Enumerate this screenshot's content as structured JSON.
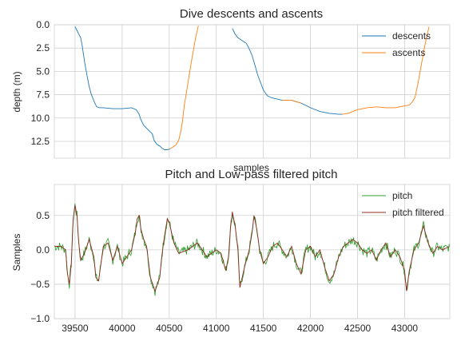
{
  "chart_data": [
    {
      "type": "line",
      "title": "Dive descents and ascents",
      "xlabel": "samples",
      "ylabel": "depth (m)",
      "xlim": [
        39280,
        43480
      ],
      "ylim": [
        14.3,
        0.0
      ],
      "y_inverted": true,
      "grid": true,
      "legend": "top-right",
      "yticks": [
        0.0,
        2.5,
        5.0,
        7.5,
        10.0,
        12.5
      ],
      "ytick_labels": [
        "0.0",
        "2.5",
        "5.0",
        "7.5",
        "10.0",
        "12.5"
      ],
      "xticks": [
        39500,
        40000,
        40500,
        41000,
        41500,
        42000,
        42500,
        43000
      ],
      "xtick_labels": [],
      "series": [
        {
          "name": "descents",
          "color": "#1f77b4",
          "segments": [
            {
              "x": [
                39500,
                39520,
                39540,
                39560,
                39575,
                39590,
                39610,
                39630,
                39650,
                39670,
                39690,
                39710,
                39730,
                39760,
                39800,
                39900,
                40000,
                40100,
                40150,
                40180,
                40200,
                40230,
                40260,
                40290,
                40320,
                40340,
                40360,
                40380,
                40400,
                40420,
                40450,
                40480,
                40510
              ],
              "y": [
                0.2,
                0.6,
                1.0,
                1.4,
                2.2,
                3.2,
                4.5,
                5.6,
                6.6,
                7.4,
                7.9,
                8.4,
                8.8,
                8.9,
                8.9,
                9.0,
                9.0,
                8.9,
                9.1,
                9.6,
                10.2,
                10.8,
                11.1,
                11.4,
                11.7,
                12.4,
                12.7,
                12.9,
                13.0,
                13.2,
                13.4,
                13.4,
                13.3
              ]
            },
            {
              "x": [
                41170,
                41200,
                41230,
                41260,
                41290,
                41320,
                41350,
                41380,
                41410,
                41440,
                41470,
                41500,
                41540,
                41580,
                41620,
                41700,
                41800,
                41900,
                42000,
                42100,
                42200,
                42300,
                42340
              ],
              "y": [
                0.4,
                1.0,
                1.4,
                1.6,
                1.8,
                2.0,
                2.6,
                3.3,
                4.3,
                5.4,
                6.2,
                7.0,
                7.6,
                7.8,
                7.9,
                8.1,
                8.1,
                8.4,
                8.9,
                9.3,
                9.5,
                9.6,
                9.6
              ]
            }
          ]
        },
        {
          "name": "ascents",
          "color": "#ff7f0e",
          "segments": [
            {
              "x": [
                40510,
                40540,
                40570,
                40600,
                40620,
                40640,
                40660,
                40690,
                40720,
                40750,
                40780,
                40810
              ],
              "y": [
                13.3,
                13.1,
                12.9,
                12.4,
                11.6,
                10.4,
                8.7,
                6.8,
                4.9,
                3.1,
                1.4,
                0.1
              ],
              "break_after": true
            },
            {
              "x": [
                41700,
                41800,
                41900
              ],
              "y": [
                8.1,
                8.1,
                8.4
              ],
              "break_after": true
            },
            {
              "x": [
                42340,
                42400,
                42500,
                42600,
                42700,
                42800,
                42900,
                43000,
                43050,
                43080,
                43110,
                43140,
                43170,
                43200,
                43230,
                43260
              ],
              "y": [
                9.6,
                9.5,
                9.1,
                8.9,
                8.8,
                8.9,
                8.9,
                8.7,
                8.6,
                8.3,
                7.8,
                6.4,
                4.7,
                3.0,
                1.5,
                0.2
              ]
            }
          ]
        }
      ]
    },
    {
      "type": "line",
      "title": "Pitch and Low-pass filtered pitch",
      "xlabel": "",
      "ylabel": "Samples",
      "xlim": [
        39280,
        43480
      ],
      "ylim": [
        -1.0,
        0.95
      ],
      "grid": true,
      "legend": "top-right",
      "yticks": [
        -1.0,
        -0.5,
        0.0,
        0.5
      ],
      "ytick_labels": [
        "−1.0",
        "−0.5",
        "0.0",
        "0.5"
      ],
      "xticks": [
        39500,
        40000,
        40500,
        41000,
        41500,
        42000,
        42500,
        43000
      ],
      "xtick_labels": [
        "39500",
        "40000",
        "40500",
        "41000",
        "41500",
        "42000",
        "42500",
        "43000"
      ],
      "series": [
        {
          "name": "pitch",
          "color": "#2ca02c",
          "noise": 0.07,
          "x": [
            39280,
            39350,
            39400,
            39420,
            39440,
            39460,
            39480,
            39500,
            39520,
            39540,
            39560,
            39600,
            39650,
            39700,
            39720,
            39750,
            39800,
            39850,
            39900,
            39950,
            40000,
            40050,
            40100,
            40140,
            40160,
            40180,
            40200,
            40230,
            40260,
            40300,
            40350,
            40400,
            40420,
            40450,
            40480,
            40500,
            40550,
            40600,
            40700,
            40800,
            40900,
            41000,
            41050,
            41100,
            41130,
            41150,
            41170,
            41200,
            41230,
            41250,
            41300,
            41350,
            41380,
            41400,
            41430,
            41460,
            41500,
            41550,
            41600,
            41650,
            41700,
            41750,
            41800,
            41850,
            41900,
            41950,
            42000,
            42050,
            42100,
            42150,
            42200,
            42250,
            42300,
            42350,
            42400,
            42450,
            42500,
            42550,
            42600,
            42650,
            42700,
            42750,
            42800,
            42850,
            42900,
            42950,
            43000,
            43020,
            43050,
            43100,
            43150,
            43200,
            43250,
            43300,
            43350,
            43400,
            43480
          ],
          "y": [
            0.05,
            0.05,
            0.0,
            -0.35,
            -0.5,
            -0.2,
            0.45,
            0.65,
            0.5,
            0.1,
            -0.15,
            -0.05,
            0.15,
            -0.1,
            -0.4,
            -0.45,
            0.05,
            0.1,
            -0.15,
            0.05,
            -0.2,
            -0.1,
            0.0,
            0.25,
            0.45,
            0.5,
            0.3,
            0.15,
            0.05,
            -0.4,
            -0.6,
            -0.4,
            -0.1,
            0.2,
            0.45,
            0.4,
            0.1,
            -0.05,
            0.0,
            0.1,
            -0.1,
            0.0,
            -0.05,
            -0.3,
            -0.1,
            0.3,
            0.55,
            0.35,
            0.0,
            -0.55,
            -0.25,
            0.0,
            0.25,
            0.5,
            0.3,
            0.0,
            -0.2,
            -0.1,
            0.05,
            0.1,
            0.0,
            -0.1,
            0.05,
            -0.2,
            -0.35,
            0.0,
            0.05,
            -0.1,
            0.0,
            -0.25,
            -0.45,
            -0.35,
            -0.1,
            0.05,
            0.1,
            0.15,
            0.1,
            0.0,
            -0.05,
            0.0,
            -0.15,
            0.0,
            0.1,
            -0.1,
            0.0,
            -0.1,
            -0.3,
            -0.6,
            -0.3,
            0.0,
            0.1,
            0.35,
            0.1,
            -0.05,
            0.05,
            0.0,
            0.05
          ]
        },
        {
          "name": "pitch filtered",
          "color": "#8c2b1f",
          "x": [
            39280,
            39350,
            39400,
            39420,
            39440,
            39460,
            39480,
            39500,
            39520,
            39540,
            39560,
            39600,
            39650,
            39700,
            39720,
            39750,
            39800,
            39850,
            39900,
            39950,
            40000,
            40050,
            40100,
            40140,
            40160,
            40180,
            40200,
            40230,
            40260,
            40300,
            40350,
            40400,
            40420,
            40450,
            40480,
            40500,
            40550,
            40600,
            40700,
            40800,
            40900,
            41000,
            41050,
            41100,
            41130,
            41150,
            41170,
            41200,
            41230,
            41250,
            41300,
            41350,
            41380,
            41400,
            41430,
            41460,
            41500,
            41550,
            41600,
            41650,
            41700,
            41750,
            41800,
            41850,
            41900,
            41950,
            42000,
            42050,
            42100,
            42150,
            42200,
            42250,
            42300,
            42350,
            42400,
            42450,
            42500,
            42550,
            42600,
            42650,
            42700,
            42750,
            42800,
            42850,
            42900,
            42950,
            43000,
            43020,
            43050,
            43100,
            43150,
            43200,
            43250,
            43300,
            43350,
            43400,
            43480
          ],
          "y": [
            0.05,
            0.05,
            0.0,
            -0.35,
            -0.5,
            -0.2,
            0.45,
            0.65,
            0.5,
            0.1,
            -0.15,
            -0.05,
            0.15,
            -0.1,
            -0.4,
            -0.45,
            0.05,
            0.1,
            -0.15,
            0.05,
            -0.2,
            -0.1,
            0.0,
            0.25,
            0.45,
            0.5,
            0.3,
            0.15,
            0.05,
            -0.4,
            -0.6,
            -0.4,
            -0.1,
            0.2,
            0.45,
            0.4,
            0.1,
            -0.05,
            0.0,
            0.1,
            -0.1,
            0.0,
            -0.05,
            -0.3,
            -0.1,
            0.3,
            0.55,
            0.35,
            0.0,
            -0.55,
            -0.25,
            0.0,
            0.25,
            0.5,
            0.3,
            0.0,
            -0.2,
            -0.1,
            0.05,
            0.1,
            0.0,
            -0.1,
            0.05,
            -0.2,
            -0.35,
            0.0,
            0.05,
            -0.1,
            0.0,
            -0.25,
            -0.45,
            -0.35,
            -0.1,
            0.05,
            0.1,
            0.15,
            0.1,
            0.0,
            -0.05,
            0.0,
            -0.15,
            0.0,
            0.1,
            -0.1,
            0.0,
            -0.1,
            -0.3,
            -0.6,
            -0.3,
            0.0,
            0.1,
            0.35,
            0.1,
            -0.05,
            0.05,
            0.0,
            0.05
          ]
        }
      ]
    }
  ]
}
